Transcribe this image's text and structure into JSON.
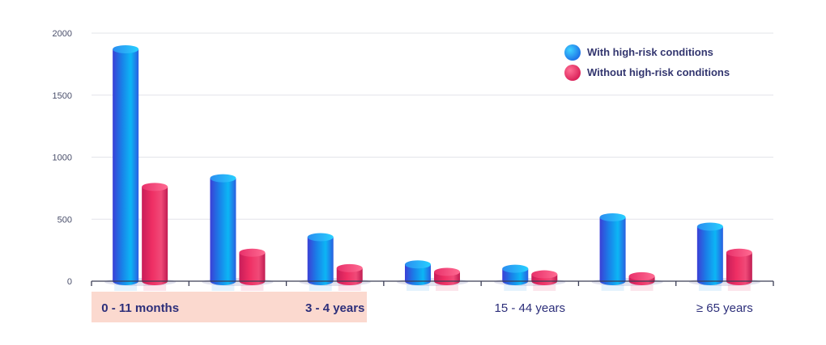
{
  "chart_data": {
    "type": "bar",
    "categories": [
      "0 - 11 months",
      "",
      "3 - 4 years",
      "",
      "15 - 44 years",
      "",
      "≥ 65 years"
    ],
    "highlighted_labels": [
      "0 - 11 months",
      "3 - 4 years"
    ],
    "series": [
      {
        "name": "With high-risk conditions",
        "values": [
          1870,
          830,
          355,
          135,
          100,
          515,
          440
        ],
        "color": "#1e90ee"
      },
      {
        "name": "Without high-risk conditions",
        "values": [
          760,
          230,
          105,
          75,
          55,
          40,
          230
        ],
        "color": "#e5245e"
      }
    ],
    "yticks": [
      0,
      500,
      1000,
      1500,
      2000
    ],
    "ylim": [
      0,
      2000
    ],
    "grid": true,
    "legend_position": "top-right",
    "highlight_color": "#fbd9cf"
  }
}
